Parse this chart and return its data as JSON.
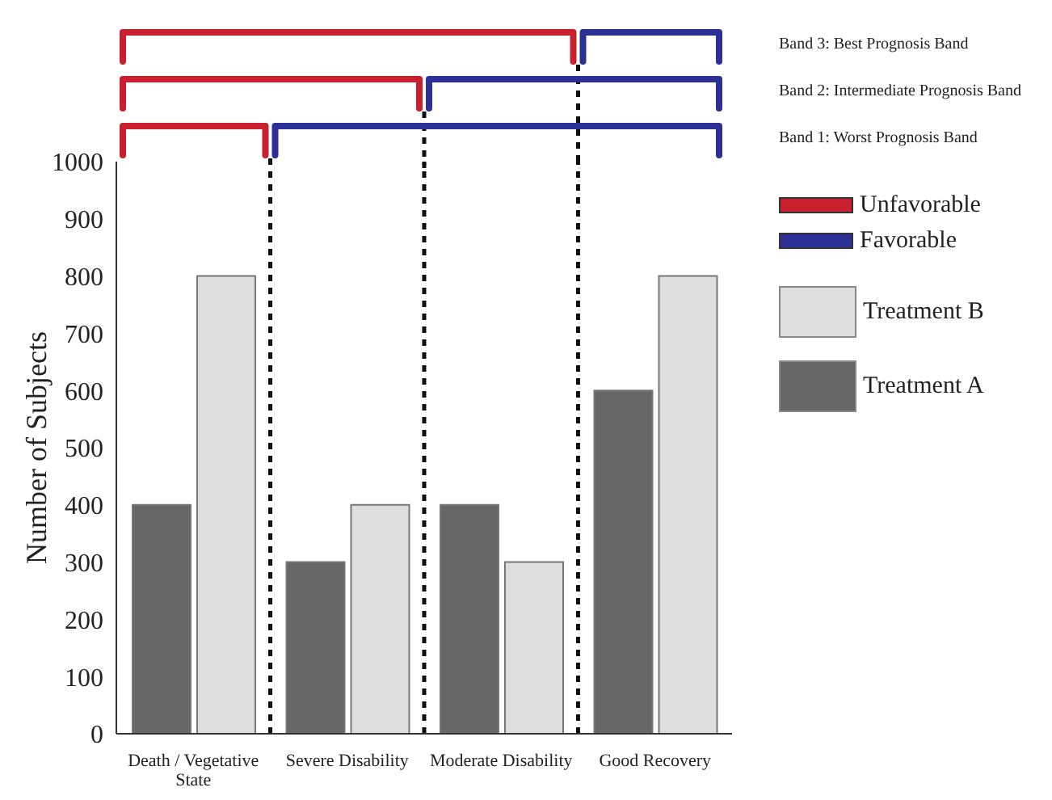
{
  "chart_data": {
    "type": "bar",
    "ylabel": "Number of Subjects",
    "categories": [
      "Death / Vegetative State",
      "Severe Disability",
      "Moderate Disability",
      "Good Recovery"
    ],
    "series": [
      {
        "name": "Treatment A",
        "color": "#666666",
        "values": [
          400,
          300,
          400,
          600
        ]
      },
      {
        "name": "Treatment B",
        "color": "#dedede",
        "values": [
          800,
          400,
          300,
          800
        ]
      }
    ],
    "ylim": [
      0,
      1000
    ],
    "yticks": [
      0,
      100,
      200,
      300,
      400,
      500,
      600,
      700,
      800,
      900,
      1000
    ],
    "grid": false,
    "legend": "right",
    "annotations": [
      "Band 3: Best Prognosis Band",
      "Band 2: Intermediate Prognosis Band",
      "Band 1: Worst Prognosis Band",
      "Unfavorable",
      "Favorable"
    ]
  }
}
